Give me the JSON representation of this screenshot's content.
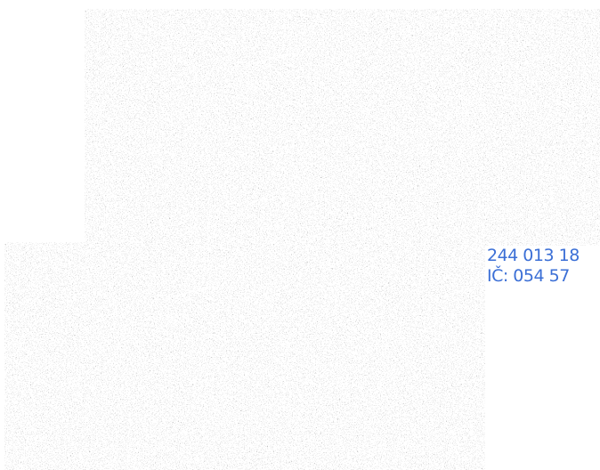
{
  "contact": {
    "phone": "244 013 18",
    "company_id": "IČ: 054 57"
  }
}
